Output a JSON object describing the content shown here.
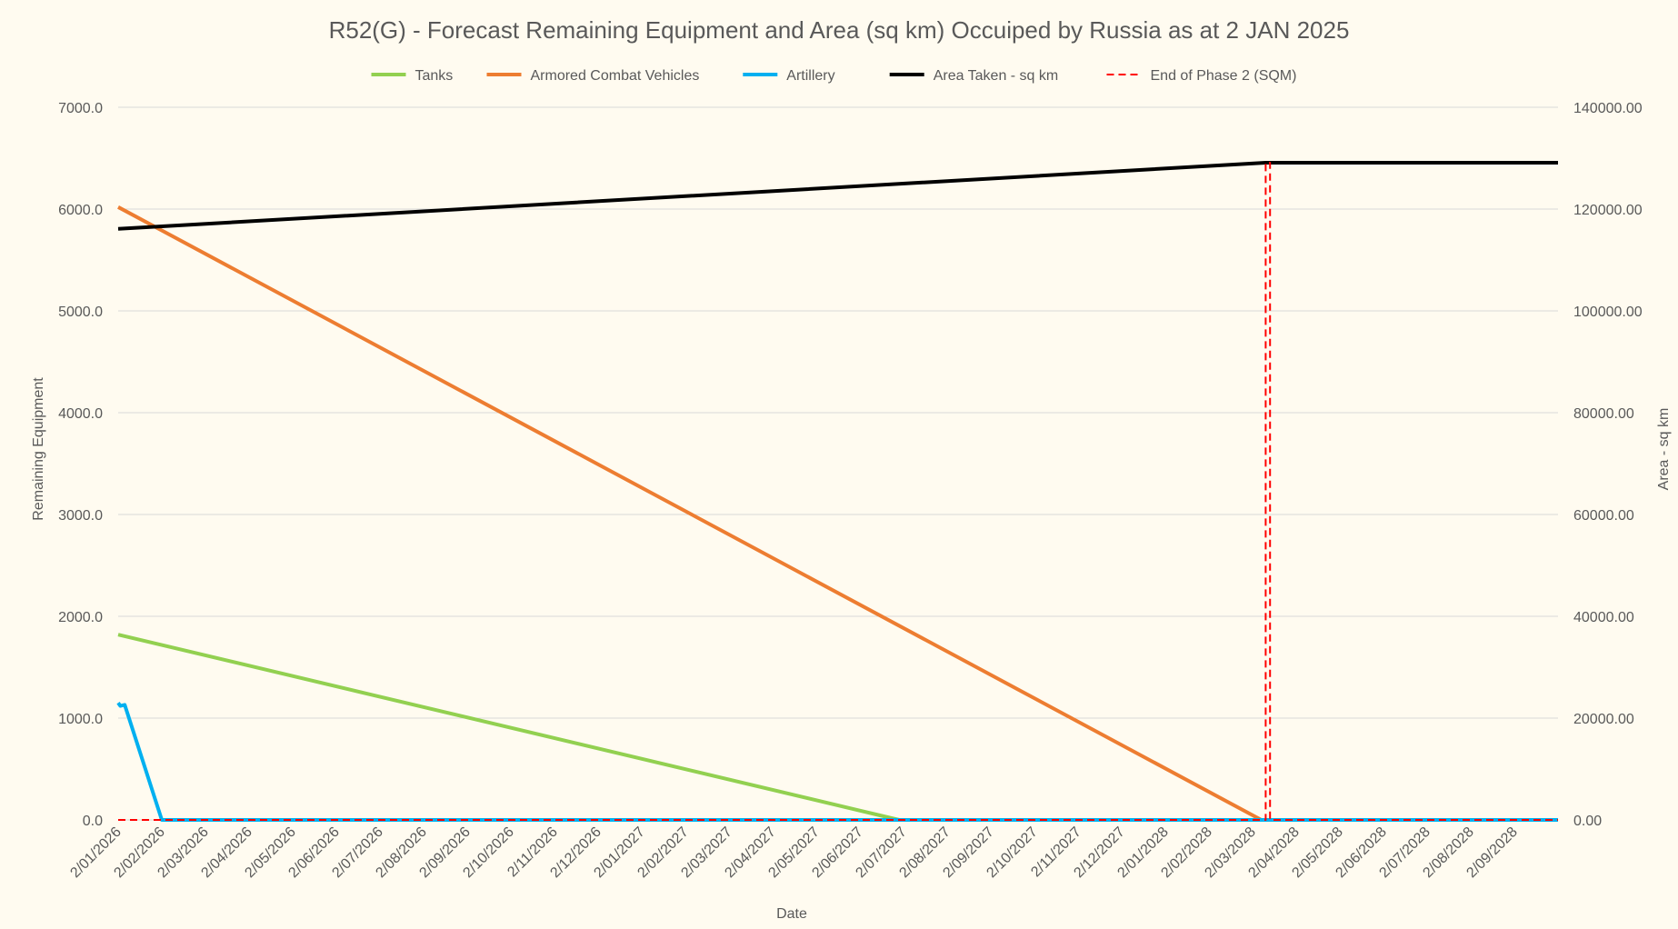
{
  "chart_data": {
    "type": "line",
    "title": "R52(G) - Forecast Remaining Equipment and Area (sq km) Occuiped by Russia as at 2 JAN 2025",
    "xlabel": "Date",
    "ylabel": "Remaining Equipment",
    "y2label": "Area - sq km",
    "ylim": [
      0,
      7000
    ],
    "y2lim": [
      0,
      140000
    ],
    "yticks": [
      "0.0",
      "1000.0",
      "2000.0",
      "3000.0",
      "4000.0",
      "5000.0",
      "6000.0",
      "7000.0"
    ],
    "y2ticks": [
      "0.00",
      "20000.00",
      "40000.00",
      "60000.00",
      "80000.00",
      "100000.00",
      "120000.00",
      "140000.00"
    ],
    "x_categories": [
      "2/01/2026",
      "2/02/2026",
      "2/03/2026",
      "2/04/2026",
      "2/05/2026",
      "2/06/2026",
      "2/07/2026",
      "2/08/2026",
      "2/09/2026",
      "2/10/2026",
      "2/11/2026",
      "2/12/2026",
      "2/01/2027",
      "2/02/2027",
      "2/03/2027",
      "2/04/2027",
      "2/05/2027",
      "2/06/2027",
      "2/07/2027",
      "2/08/2027",
      "2/09/2027",
      "2/10/2027",
      "2/11/2027",
      "2/12/2027",
      "2/01/2028",
      "2/02/2028",
      "2/03/2028",
      "2/04/2028",
      "2/05/2028",
      "2/06/2028",
      "2/07/2028",
      "2/08/2028",
      "2/09/2028"
    ],
    "x_domain_months": [
      0,
      33
    ],
    "grid": true,
    "legend_position": "top",
    "series": [
      {
        "name": "Tanks",
        "axis": "left",
        "color": "#92d050",
        "style": "solid",
        "points": [
          [
            0,
            1820
          ],
          [
            17.9,
            0
          ],
          [
            33,
            0
          ]
        ]
      },
      {
        "name": "Armored Combat Vehicles",
        "axis": "left",
        "color": "#ed7d31",
        "style": "solid",
        "points": [
          [
            0,
            6020
          ],
          [
            26.2,
            0
          ],
          [
            33,
            0
          ]
        ]
      },
      {
        "name": "Artillery",
        "axis": "left",
        "color": "#00b0f0",
        "style": "solid",
        "points": [
          [
            0,
            1150
          ],
          [
            0.05,
            1120
          ],
          [
            0.15,
            1130
          ],
          [
            1.0,
            0
          ],
          [
            33,
            0
          ]
        ]
      },
      {
        "name": "Area Taken - sq km",
        "axis": "right",
        "color": "#000000",
        "style": "solid",
        "points": [
          [
            0,
            116100
          ],
          [
            26.3,
            129100
          ],
          [
            33,
            129100
          ]
        ]
      },
      {
        "name": "End of Phase 2 (SQM)",
        "axis": "right",
        "color": "#ff0000",
        "style": "dashed",
        "points": [
          [
            0,
            0
          ],
          [
            26.3,
            0
          ],
          [
            26.3,
            129100
          ],
          [
            26.4,
            129100
          ],
          [
            26.4,
            0
          ],
          [
            33,
            0
          ]
        ]
      }
    ]
  }
}
